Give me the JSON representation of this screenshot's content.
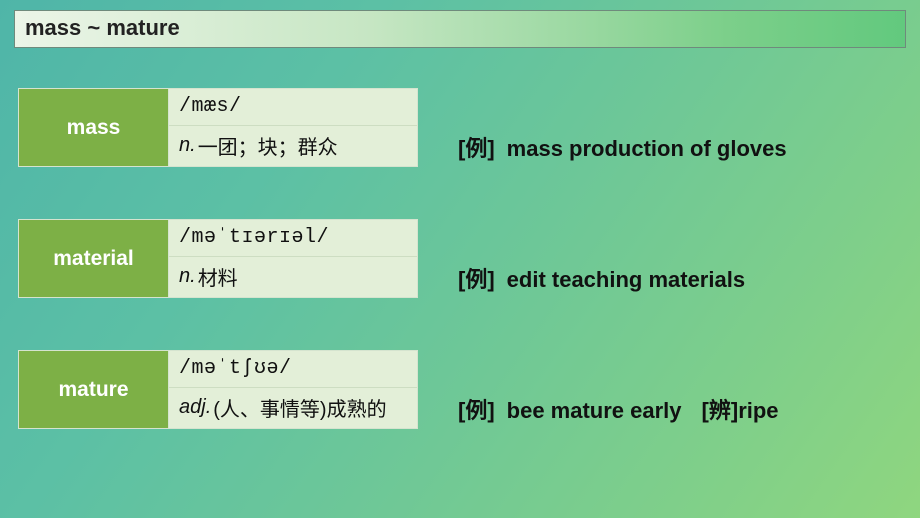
{
  "colors": {
    "word_bg": "#7db046",
    "def_bg": "#e3efd8",
    "border": "#d5e4cf",
    "title_border": "#6f8a7c"
  },
  "title": "mass ~ mature",
  "entries": [
    {
      "word": "mass",
      "ipa": "/mæs/",
      "pos": "n.",
      "meaning": "一团；块；群众",
      "example_tag": "[例]",
      "example": "mass production of gloves",
      "extra_tag": "",
      "extra": ""
    },
    {
      "word": "material",
      "ipa": "/məˈtɪərɪəl/",
      "pos": "n.",
      "meaning": "材料",
      "example_tag": "[例]",
      "example": "edit teaching materials",
      "extra_tag": "",
      "extra": ""
    },
    {
      "word": "mature",
      "ipa": "/məˈtʃʊə/",
      "pos": "adj.",
      "meaning": "(人、事情等)成熟的",
      "example_tag": "[例]",
      "example": "bee mature early",
      "extra_tag": "[辨]",
      "extra": "ripe"
    }
  ]
}
